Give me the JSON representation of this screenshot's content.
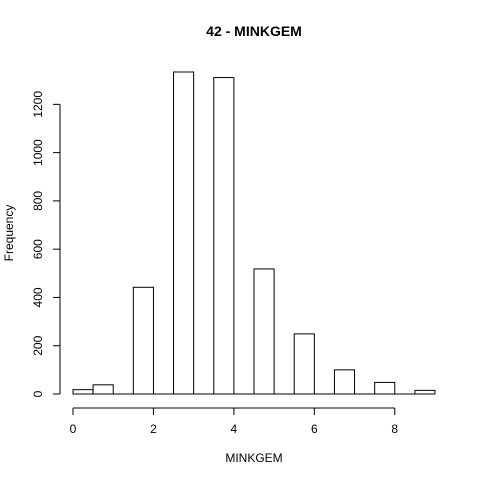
{
  "chart_data": {
    "type": "bar",
    "title": "42 - MINKGEM",
    "xlabel": "MINKGEM",
    "ylabel": "Frequency",
    "bins": [
      [
        0.0,
        0.5
      ],
      [
        0.5,
        1.0
      ],
      [
        1.0,
        1.5
      ],
      [
        1.5,
        2.0
      ],
      [
        2.0,
        2.5
      ],
      [
        2.5,
        3.0
      ],
      [
        3.0,
        3.5
      ],
      [
        3.5,
        4.0
      ],
      [
        4.0,
        4.5
      ],
      [
        4.5,
        5.0
      ],
      [
        5.0,
        5.5
      ],
      [
        5.5,
        6.0
      ],
      [
        6.0,
        6.5
      ],
      [
        6.5,
        7.0
      ],
      [
        7.0,
        7.5
      ],
      [
        7.5,
        8.0
      ],
      [
        8.0,
        8.5
      ],
      [
        8.5,
        9.0
      ]
    ],
    "values": [
      18,
      38,
      0,
      442,
      0,
      1334,
      0,
      1311,
      0,
      518,
      0,
      249,
      0,
      100,
      0,
      48,
      0,
      15
    ],
    "xlim": [
      0,
      9
    ],
    "ylim": [
      0,
      1334
    ],
    "xticks": [
      "0",
      "2",
      "4",
      "6",
      "8"
    ],
    "yticks": [
      "0",
      "200",
      "400",
      "600",
      "800",
      "1000",
      "1200"
    ],
    "grid": false,
    "legend": "none"
  }
}
